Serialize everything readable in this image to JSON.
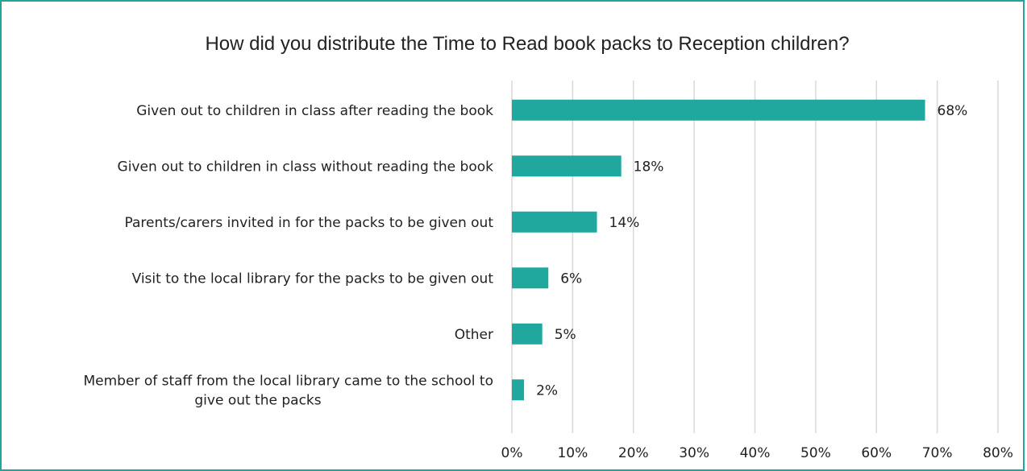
{
  "chart_data": {
    "type": "bar",
    "orientation": "horizontal",
    "title": "How did you distribute the Time to Read book packs to Reception children?",
    "categories": [
      "Given out to children in class after reading the book",
      "Given out to children in class without reading the book",
      "Parents/carers invited in for the packs to be given out",
      "Visit to the local library for the packs to be given out",
      "Other",
      "Member of staff from the local library came to the school to give out the packs"
    ],
    "category_lines": [
      [
        "Given out to children in class after reading the book"
      ],
      [
        "Given out to children in class without reading the book"
      ],
      [
        "Parents/carers invited in for the packs to be given out"
      ],
      [
        "Visit to the local library for the packs to be given out"
      ],
      [
        "Other"
      ],
      [
        "Member of staff from the local library came to the school to",
        "give out the packs"
      ]
    ],
    "values": [
      68,
      18,
      14,
      6,
      5,
      2
    ],
    "data_labels": [
      "68%",
      "18%",
      "14%",
      "6%",
      "5%",
      "2%"
    ],
    "x_ticks": [
      0,
      10,
      20,
      30,
      40,
      50,
      60,
      70,
      80
    ],
    "x_tick_labels": [
      "0%",
      "10%",
      "20%",
      "30%",
      "40%",
      "50%",
      "60%",
      "70%",
      "80%"
    ],
    "xlim": [
      0,
      80
    ],
    "xlabel": "",
    "ylabel": "",
    "grid": true,
    "bar_color": "#20a89f",
    "border_color": "#1fa59a"
  }
}
